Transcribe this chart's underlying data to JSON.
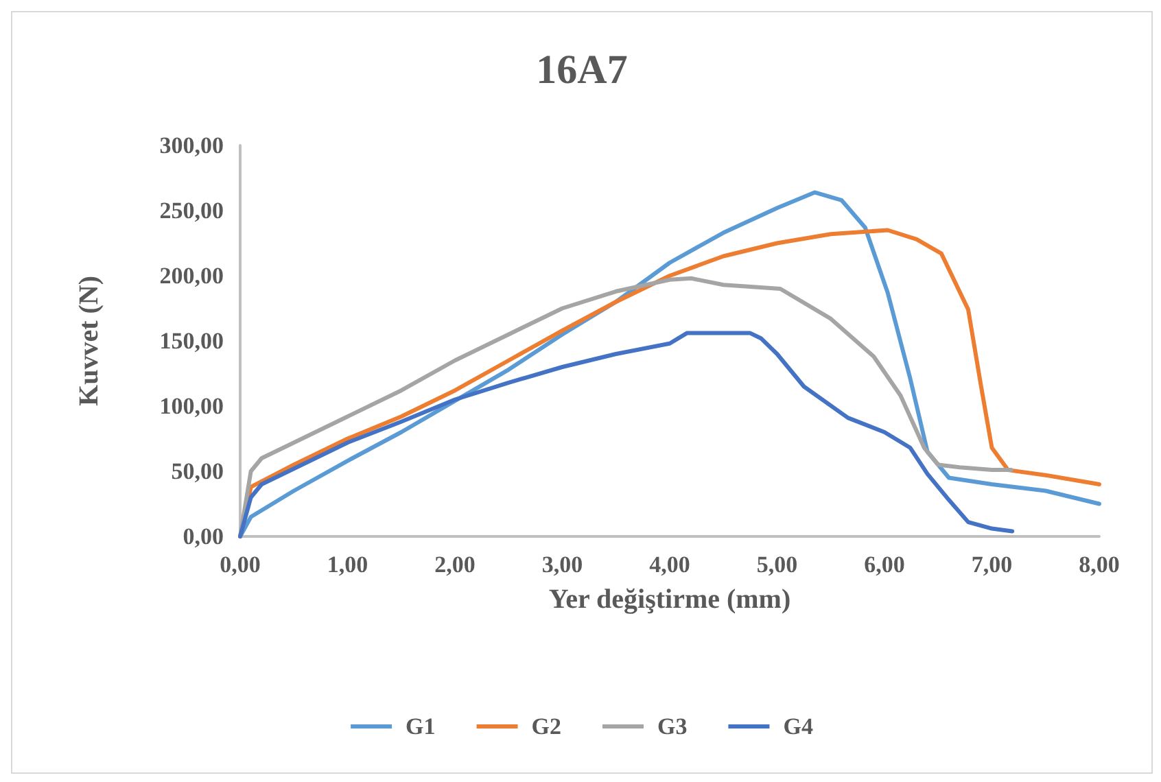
{
  "chart_data": {
    "type": "line",
    "title": "16A7",
    "xlabel": "Yer değiştirme (mm)",
    "ylabel": "Kuvvet (N)",
    "xlim": [
      0,
      8
    ],
    "ylim": [
      0,
      300
    ],
    "xticks": [
      {
        "value": 0,
        "label": "0,00"
      },
      {
        "value": 1,
        "label": "1,00"
      },
      {
        "value": 2,
        "label": "2,00"
      },
      {
        "value": 3,
        "label": "3,00"
      },
      {
        "value": 4,
        "label": "4,00"
      },
      {
        "value": 5,
        "label": "5,00"
      },
      {
        "value": 6,
        "label": "6,00"
      },
      {
        "value": 7,
        "label": "7,00"
      },
      {
        "value": 8,
        "label": "8,00"
      }
    ],
    "yticks": [
      {
        "value": 0,
        "label": "0,00"
      },
      {
        "value": 50,
        "label": "50,00"
      },
      {
        "value": 100,
        "label": "100,00"
      },
      {
        "value": 150,
        "label": "150,00"
      },
      {
        "value": 200,
        "label": "200,00"
      },
      {
        "value": 250,
        "label": "250,00"
      },
      {
        "value": 300,
        "label": "300,00"
      }
    ],
    "grid": false,
    "legend": "bottom",
    "marker": "none",
    "line_style": "solid",
    "series": [
      {
        "name": "G1",
        "color": "#5b9bd5",
        "x": [
          0,
          0.1,
          0.5,
          1,
          1.5,
          2,
          2.5,
          3,
          3.5,
          4,
          4.5,
          5,
          5.35,
          5.6,
          5.82,
          6.03,
          6.24,
          6.4,
          6.6,
          7,
          7.5,
          8
        ],
        "values": [
          0,
          15,
          35,
          58,
          80,
          104,
          128,
          155,
          180,
          210,
          233,
          252,
          264,
          258,
          237,
          187,
          121,
          65,
          45,
          40,
          35,
          25
        ]
      },
      {
        "name": "G2",
        "color": "#ed7d31",
        "x": [
          0,
          0.1,
          0.5,
          1,
          1.5,
          2,
          2.5,
          3,
          3.5,
          4,
          4.5,
          5,
          5.5,
          6.03,
          6.3,
          6.53,
          6.78,
          6.9,
          7,
          7.15,
          7.5,
          8
        ],
        "values": [
          0,
          38,
          55,
          75,
          92,
          112,
          135,
          158,
          180,
          200,
          215,
          225,
          232,
          235,
          228,
          217,
          174,
          115,
          68,
          51,
          47,
          40
        ]
      },
      {
        "name": "G3",
        "color": "#a5a5a5",
        "x": [
          0,
          0.1,
          0.2,
          0.5,
          1,
          1.5,
          2,
          2.5,
          3,
          3.5,
          4,
          4.2,
          4.5,
          5.03,
          5.5,
          5.9,
          6.15,
          6.37,
          6.5,
          6.7,
          7,
          7.18
        ],
        "values": [
          0,
          50,
          60,
          72,
          92,
          112,
          135,
          155,
          175,
          188,
          197,
          198,
          193,
          190,
          167,
          138,
          108,
          68,
          55,
          53,
          51,
          51
        ]
      },
      {
        "name": "G4",
        "color": "#4472c4",
        "x": [
          0,
          0.1,
          0.2,
          0.5,
          1,
          1.5,
          2,
          2.5,
          3,
          3.5,
          4,
          4.16,
          4.75,
          4.85,
          5.0,
          5.25,
          5.66,
          6.0,
          6.24,
          6.4,
          6.6,
          6.78,
          7.0,
          7.19
        ],
        "values": [
          0,
          30,
          40,
          52,
          72,
          88,
          105,
          118,
          130,
          140,
          148,
          156,
          156,
          152,
          140,
          115,
          91,
          80,
          68,
          48,
          28,
          11,
          6,
          4
        ]
      }
    ]
  }
}
